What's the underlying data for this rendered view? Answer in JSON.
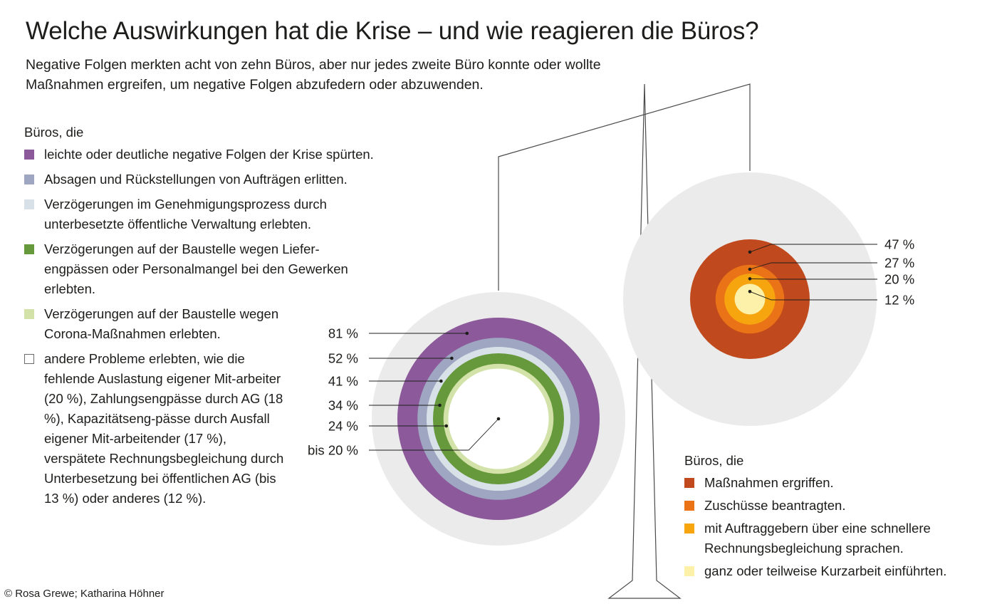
{
  "title": "Welche Auswirkungen hat die Krise – und wie reagieren die Büros?",
  "subtitle": "Negative Folgen merkten acht von zehn Büros, aber nur jedes zweite Büro konnte oder wollte Maßnahmen ergreifen, um negative Folgen abzufedern oder abzuwenden.",
  "credit": "© Rosa Grewe; Katharina Höhner",
  "colors": {
    "disc_bg": "#ebebeb",
    "frame": "#4a4a4a",
    "text": "#1d1d1b"
  },
  "chart_data": [
    {
      "type": "nested-circles",
      "legend_title": "Büros, die",
      "series": [
        {
          "label": "leichte oder deutliche negative Folgen der Krise spürten.",
          "value": 81,
          "value_label": "81 %",
          "color": "#8c5a9b"
        },
        {
          "label": "Absagen und Rückstellungen von Aufträgen erlitten.",
          "value": 52,
          "value_label": "52 %",
          "color": "#9ea6c2"
        },
        {
          "label": "Verzögerungen im Genehmigungsprozess durch unterbesetzte öffentliche Verwaltung erlebten.",
          "value": 41,
          "value_label": "41 %",
          "color": "#d7e1e7"
        },
        {
          "label": "Verzögerungen auf der Baustelle wegen Liefer-engpässen oder Personalmangel bei den Gewerken erlebten.",
          "value": 34,
          "value_label": "34 %",
          "color": "#66983c"
        },
        {
          "label": "Verzögerungen auf der Baustelle wegen Corona-Maßnahmen erlebten.",
          "value": 24,
          "value_label": "24 %",
          "color": "#d2e2a8"
        },
        {
          "label": "andere Probleme erlebten, wie die fehlende Auslastung eigener Mit-arbeiter (20 %), Zahlungsengpässe durch AG (18 %), Kapazitätseng-pässe durch Ausfall eigener Mit-arbeitender (17 %), verspätete Rechnungsbegleichung durch Unterbesetzung bei öffentlichen AG (bis 13 %) oder anderes (12 %).",
          "value": 20,
          "value_label": "bis 20 %",
          "color": "#ffffff"
        }
      ]
    },
    {
      "type": "nested-circles",
      "legend_title": "Büros, die",
      "series": [
        {
          "label": "Maßnahmen ergriffen.",
          "value": 47,
          "value_label": "47 %",
          "color": "#c0491d"
        },
        {
          "label": "Zuschüsse beantragten.",
          "value": 27,
          "value_label": "27 %",
          "color": "#ea7317"
        },
        {
          "label": "mit Auftraggebern über eine schnellere Rechnungsbegleichung sprachen.",
          "value": 20,
          "value_label": "20 %",
          "color": "#f6a50f"
        },
        {
          "label": "ganz oder teilweise Kurzarbeit einführten.",
          "value": 12,
          "value_label": "12 %",
          "color": "#fdf0a8"
        }
      ]
    }
  ]
}
